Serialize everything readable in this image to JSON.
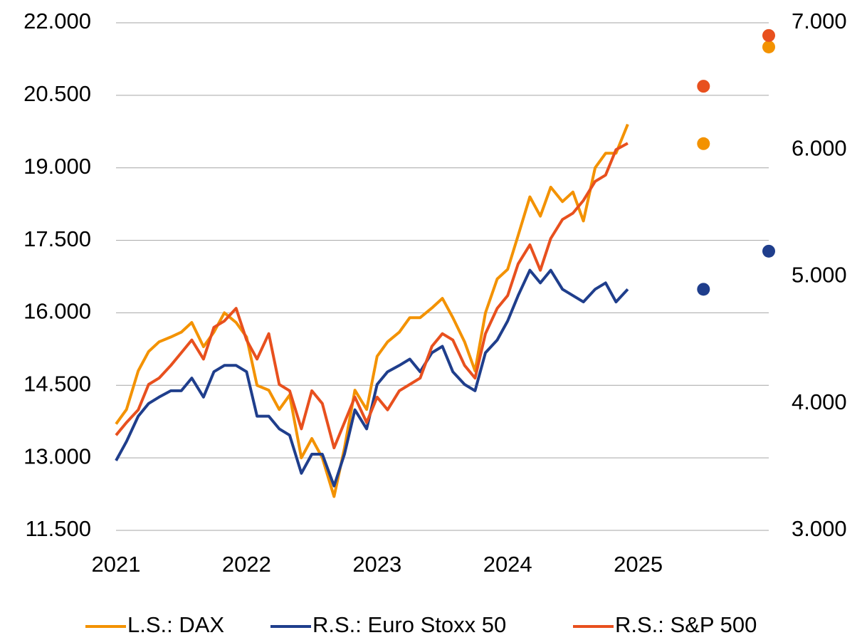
{
  "chart_data": {
    "type": "line",
    "x": [
      2021,
      2021.08,
      2021.17,
      2021.25,
      2021.33,
      2021.42,
      2021.5,
      2021.58,
      2021.67,
      2021.75,
      2021.83,
      2021.92,
      2022,
      2022.08,
      2022.17,
      2022.25,
      2022.33,
      2022.42,
      2022.5,
      2022.58,
      2022.67,
      2022.75,
      2022.83,
      2022.92,
      2023,
      2023.08,
      2023.17,
      2023.25,
      2023.33,
      2023.42,
      2023.5,
      2023.58,
      2023.67,
      2023.75,
      2023.83,
      2023.92,
      2024,
      2024.08,
      2024.17,
      2024.25,
      2024.33,
      2024.42,
      2024.5,
      2024.58,
      2024.67,
      2024.75,
      2024.83,
      2024.92
    ],
    "xlim": [
      2021,
      2026
    ],
    "xticks": [
      2021,
      2022,
      2023,
      2024,
      2025
    ],
    "ylim": [
      11500,
      22000
    ],
    "yticks": [
      {
        "value": 11500,
        "label": "11.500"
      },
      {
        "value": 13000,
        "label": "13.000"
      },
      {
        "value": 14500,
        "label": "14.500"
      },
      {
        "value": 16000,
        "label": "16.000"
      },
      {
        "value": 17500,
        "label": "17.500"
      },
      {
        "value": 19000,
        "label": "19.000"
      },
      {
        "value": 20500,
        "label": "20.500"
      },
      {
        "value": 22000,
        "label": "22.000"
      }
    ],
    "y2lim": [
      3000,
      7000
    ],
    "y2ticks": [
      {
        "value": 3000,
        "label": "3.000"
      },
      {
        "value": 4000,
        "label": "4.000"
      },
      {
        "value": 5000,
        "label": "5.000"
      },
      {
        "value": 6000,
        "label": "6.000"
      },
      {
        "value": 7000,
        "label": "7.000"
      }
    ],
    "grid": true,
    "legend": "bottom",
    "series": [
      {
        "name": "L.S.: DAX",
        "color": "#f39200",
        "axis": "y",
        "values": [
          13700,
          14000,
          14800,
          15200,
          15400,
          15500,
          15600,
          15800,
          15300,
          15600,
          16000,
          15800,
          15500,
          14500,
          14400,
          14000,
          14300,
          13000,
          13400,
          13000,
          12200,
          13200,
          14400,
          14000,
          15100,
          15400,
          15600,
          15900,
          15900,
          16100,
          16300,
          15900,
          15400,
          14800,
          16000,
          16700,
          16900,
          17600,
          18400,
          18000,
          18600,
          18300,
          18500,
          17900,
          19000,
          19300,
          19300,
          19900
        ],
        "forecast": {
          "x": [
            2025.5,
            2026
          ],
          "values": [
            19500,
            21500
          ]
        }
      },
      {
        "name": "R.S.: Euro Stoxx 50",
        "color": "#1f3e8c",
        "axis": "y2",
        "values": [
          3550,
          3700,
          3900,
          4000,
          4050,
          4100,
          4100,
          4200,
          4050,
          4250,
          4300,
          4300,
          4250,
          3900,
          3900,
          3800,
          3750,
          3450,
          3600,
          3600,
          3350,
          3600,
          3950,
          3800,
          4150,
          4250,
          4300,
          4350,
          4250,
          4400,
          4450,
          4250,
          4150,
          4100,
          4400,
          4500,
          4650,
          4850,
          5050,
          4950,
          5050,
          4900,
          4850,
          4800,
          4900,
          4950,
          4800,
          4900
        ],
        "forecast": {
          "x": [
            2025.5,
            2026
          ],
          "values": [
            4900,
            5200
          ]
        }
      },
      {
        "name": "R.S.: S&P 500",
        "color": "#e8501e",
        "axis": "y2",
        "values": [
          3750,
          3850,
          3950,
          4150,
          4200,
          4300,
          4400,
          4500,
          4350,
          4600,
          4650,
          4750,
          4500,
          4350,
          4550,
          4150,
          4100,
          3800,
          4100,
          4000,
          3650,
          3850,
          4050,
          3850,
          4050,
          3950,
          4100,
          4150,
          4200,
          4450,
          4550,
          4500,
          4300,
          4200,
          4550,
          4750,
          4850,
          5100,
          5250,
          5050,
          5300,
          5450,
          5500,
          5600,
          5750,
          5800,
          6000,
          6050
        ],
        "forecast": {
          "x": [
            2025.5,
            2026
          ],
          "values": [
            6500,
            6900
          ]
        }
      }
    ]
  }
}
